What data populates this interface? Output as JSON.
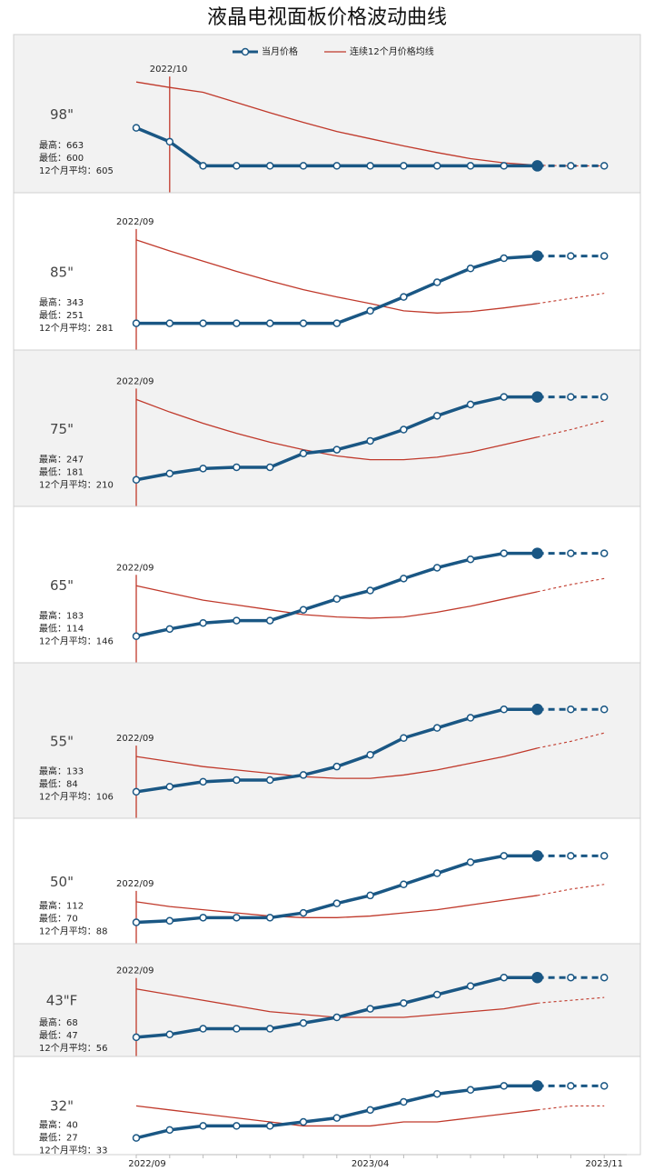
{
  "title": "液晶电视面板价格波动曲线",
  "chart_data": [
    {
      "type": "line",
      "label": "98\"",
      "stats": [
        "最高：663",
        "最低：600",
        "12个月平均：605"
      ],
      "marker": "2022/10",
      "series": [
        {
          "name": "当月价格",
          "color": "#1a5784",
          "values": [
            663,
            640,
            600,
            600,
            600,
            600,
            600,
            600,
            600,
            600,
            600,
            600,
            600,
            600,
            600
          ]
        },
        {
          "name": "连续12个月价格均线",
          "color": "#c0392b",
          "values": [
            739,
            730,
            722,
            705,
            688,
            672,
            657,
            645,
            633,
            622,
            612,
            605,
            601,
            600,
            600
          ]
        }
      ]
    },
    {
      "type": "line",
      "label": "85\"",
      "stats": [
        "最高：343",
        "最低：251",
        "12个月平均：281"
      ],
      "marker": "2022/09",
      "series": [
        {
          "name": "当月价格",
          "color": "#1a5784",
          "values": [
            251,
            251,
            251,
            251,
            251,
            251,
            251,
            268,
            287,
            307,
            326,
            340,
            343,
            343,
            343
          ]
        },
        {
          "name": "连续12个月价格均线",
          "color": "#c0392b",
          "values": [
            365,
            350,
            336,
            322,
            309,
            297,
            287,
            278,
            268,
            265,
            267,
            272,
            278,
            285,
            292
          ]
        }
      ]
    },
    {
      "type": "line",
      "label": "75\"",
      "stats": [
        "最高：247",
        "最低：181",
        "12个月平均：210"
      ],
      "marker": "2022/09",
      "series": [
        {
          "name": "当月价格",
          "color": "#1a5784",
          "values": [
            181,
            186,
            190,
            191,
            191,
            202,
            205,
            212,
            221,
            232,
            241,
            247,
            247,
            247,
            247
          ]
        },
        {
          "name": "连续12个月价格均线",
          "color": "#c0392b",
          "values": [
            245,
            235,
            226,
            218,
            211,
            205,
            200,
            197,
            197,
            199,
            203,
            209,
            215,
            221,
            228
          ]
        }
      ]
    },
    {
      "type": "line",
      "label": "65\"",
      "stats": [
        "最高：183",
        "最低：114",
        "12个月平均：146"
      ],
      "marker": "2022/09",
      "series": [
        {
          "name": "当月价格",
          "color": "#1a5784",
          "values": [
            114,
            120,
            125,
            127,
            127,
            136,
            145,
            152,
            162,
            171,
            178,
            183,
            183,
            183,
            183
          ]
        },
        {
          "name": "连续12个月价格均线",
          "color": "#c0392b",
          "values": [
            156,
            150,
            144,
            140,
            136,
            132,
            130,
            129,
            130,
            134,
            139,
            145,
            151,
            157,
            162
          ]
        }
      ]
    },
    {
      "type": "line",
      "label": "55\"",
      "stats": [
        "最高：133",
        "最低：84",
        "12个月平均：106"
      ],
      "marker": "2022/09",
      "series": [
        {
          "name": "当月价格",
          "color": "#1a5784",
          "values": [
            84,
            87,
            90,
            91,
            91,
            94,
            99,
            106,
            116,
            122,
            128,
            133,
            133,
            133,
            133
          ]
        },
        {
          "name": "连续12个月价格均线",
          "color": "#c0392b",
          "values": [
            105,
            102,
            99,
            97,
            95,
            93,
            92,
            92,
            94,
            97,
            101,
            105,
            110,
            114,
            119
          ]
        }
      ]
    },
    {
      "type": "line",
      "label": "50\"",
      "stats": [
        "最高：112",
        "最低：70",
        "12个月平均：88"
      ],
      "marker": "2022/09",
      "series": [
        {
          "name": "当月价格",
          "color": "#1a5784",
          "values": [
            70,
            71,
            73,
            73,
            73,
            76,
            82,
            87,
            94,
            101,
            108,
            112,
            112,
            112,
            112
          ]
        },
        {
          "name": "连续12个月价格均线",
          "color": "#c0392b",
          "values": [
            83,
            80,
            78,
            76,
            74,
            73,
            73,
            74,
            76,
            78,
            81,
            84,
            87,
            91,
            94
          ]
        }
      ]
    },
    {
      "type": "line",
      "label": "43\"F",
      "stats": [
        "最高：68",
        "最低：47",
        "12个月平均：56"
      ],
      "marker": "2022/09",
      "series": [
        {
          "name": "当月价格",
          "color": "#1a5784",
          "values": [
            47,
            48,
            50,
            50,
            50,
            52,
            54,
            57,
            59,
            62,
            65,
            68,
            68,
            68,
            68
          ]
        },
        {
          "name": "连续12个月价格均线",
          "color": "#c0392b",
          "values": [
            64,
            62,
            60,
            58,
            56,
            55,
            54,
            54,
            54,
            55,
            56,
            57,
            59,
            60,
            61
          ]
        }
      ]
    },
    {
      "type": "line",
      "label": "32\"",
      "stats": [
        "最高：40",
        "最低：27",
        "12个月平均：33"
      ],
      "categories": [
        "2022/09",
        null,
        null,
        null,
        null,
        null,
        null,
        "2023/04",
        null,
        null,
        null,
        null,
        null,
        null,
        "2023/11"
      ],
      "series": [
        {
          "name": "当月价格",
          "color": "#1a5784",
          "values": [
            27,
            29,
            30,
            30,
            30,
            31,
            32,
            34,
            36,
            38,
            39,
            40,
            40,
            40,
            40
          ]
        },
        {
          "name": "连续12个月价格均线",
          "color": "#c0392b",
          "values": [
            35,
            34,
            33,
            32,
            31,
            30,
            30,
            30,
            31,
            31,
            32,
            33,
            34,
            35,
            35
          ]
        }
      ]
    }
  ]
}
